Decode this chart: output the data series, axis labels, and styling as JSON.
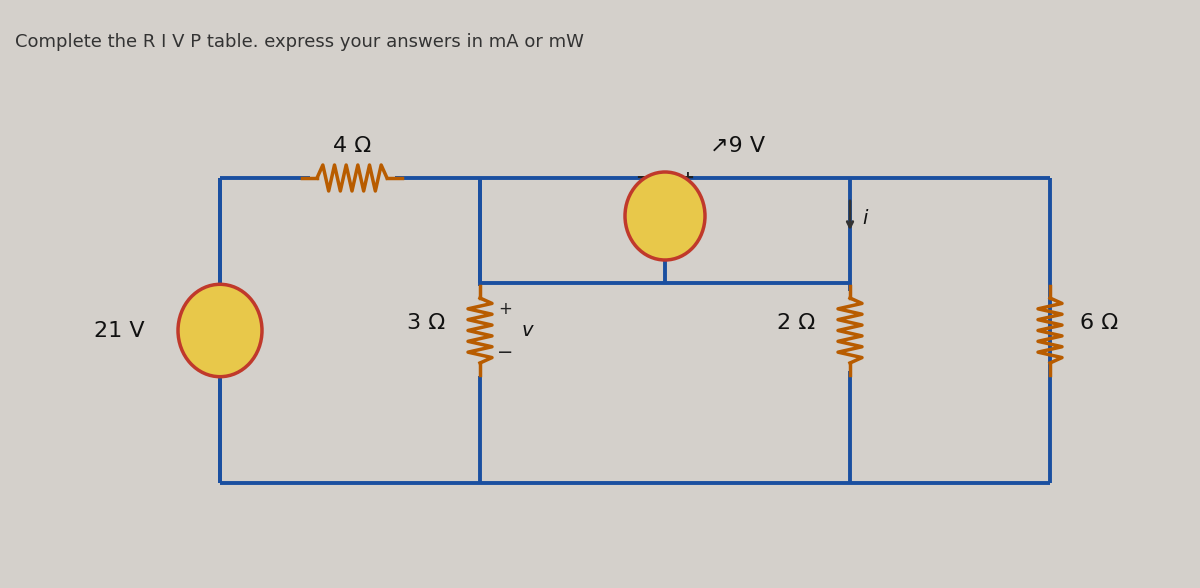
{
  "title": "Complete the R I V P table. express your answers in mA or mW",
  "title_fontsize": 13,
  "bg_color": "#d4d0cb",
  "wire_color": "#1a4fa0",
  "resistor_color": "#b85c00",
  "source_fill": "#e8c84a",
  "source_border": "#c0392b",
  "text_color": "#111111",
  "label_4ohm": "4 Ω",
  "label_3ohm": "3 Ω",
  "label_2ohm": "2 Ω",
  "label_6ohm": "6 Ω",
  "label_21v": "21 V",
  "label_9v": "↗9 V",
  "label_v": "v",
  "label_i": "i",
  "label_plus": "+",
  "label_minus": "−"
}
